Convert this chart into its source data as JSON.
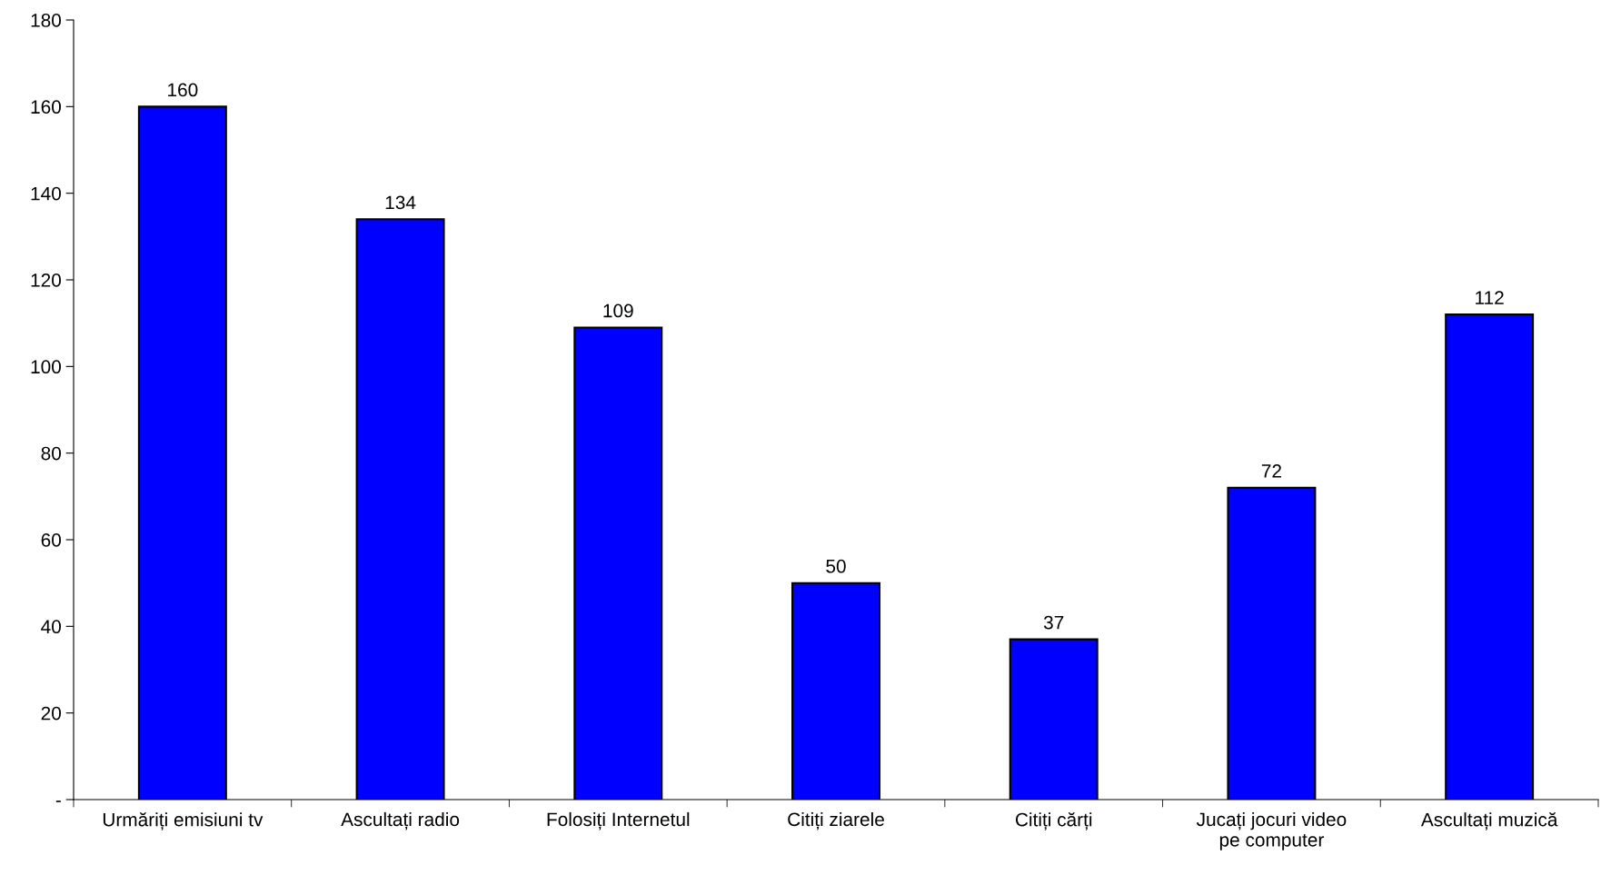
{
  "chart_data": {
    "type": "bar",
    "categories": [
      "Urmăriți emisiuni tv",
      "Ascultați radio",
      "Folosiți Internetul",
      "Citiți ziarele",
      "Citiți cărți",
      "Jucați jocuri video\npe computer",
      "Ascultați muzică"
    ],
    "values": [
      160,
      134,
      109,
      50,
      37,
      72,
      112
    ],
    "color": "#0000ff",
    "ylim": [
      0,
      180
    ],
    "yticks": [
      {
        "value": 0,
        "label": "-"
      },
      20,
      40,
      60,
      80,
      100,
      120,
      140,
      160,
      180
    ],
    "data_labels": true,
    "grid": false,
    "legend": false
  }
}
